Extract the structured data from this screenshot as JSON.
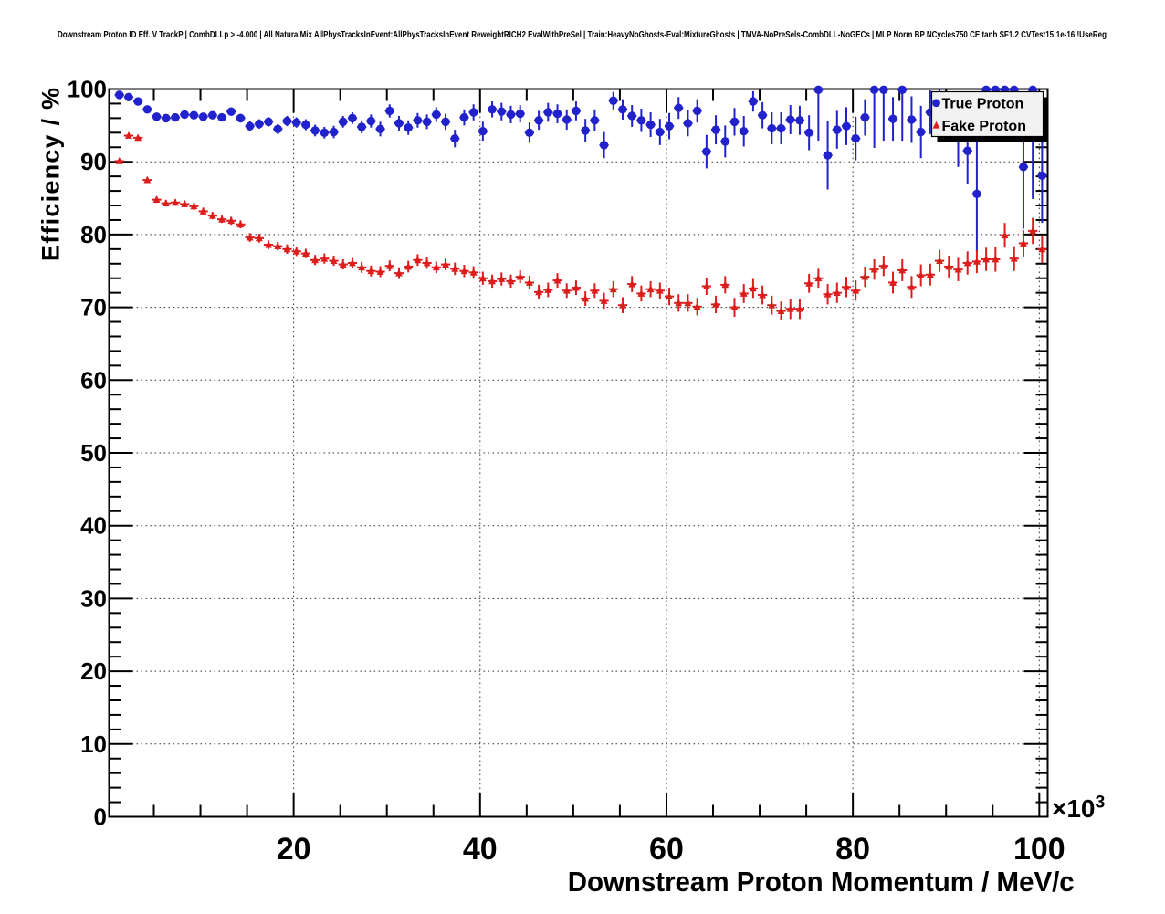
{
  "title": "Downstream Proton ID Eff. V TrackP | CombDLLp > -4.000 | All NaturalMix AllPhysTracksInEvent:AllPhysTracksInEvent ReweightRICH2 EvalWithPreSel | Train:HeavyNoGhosts-Eval:MixtureGhosts | TMVA-NoPreSels-CombDLL-NoGECs | MLP Norm BP NCycles750 CE tanh SF1.2 CVTest15:1e-16 !UseReg",
  "chart_data": {
    "type": "scatter",
    "title": "Downstream Proton ID Eff. V TrackP | CombDLLp > -4.000 | All NaturalMix AllPhysTracksInEvent:AllPhysTracksInEvent ReweightRICH2 EvalWithPreSel | Train:HeavyNoGhosts-Eval:MixtureGhosts | TMVA-NoPreSels-CombDLL-NoGECs | MLP Norm BP NCycles750 CE tanh SF1.2 CVTest15:1e-16 !UseReg",
    "xlabel": "Downstream Proton Momentum / MeV/c",
    "ylabel": "Efficiency / %",
    "x_multiplier_base": "×10",
    "x_multiplier_exp": "3",
    "xlim": [
      0.2,
      100.9
    ],
    "ylim": [
      0,
      100
    ],
    "x_major_ticks": [
      20,
      40,
      60,
      80,
      100
    ],
    "x_minor_step": 5,
    "y_major_ticks": [
      0,
      10,
      20,
      30,
      40,
      50,
      60,
      70,
      80,
      90,
      100
    ],
    "y_minor_step": 2,
    "grid": "dotted-major",
    "legend": {
      "position": "top-right",
      "entries": [
        {
          "label": "True Proton",
          "marker": "circle",
          "color": "#2222cc"
        },
        {
          "label": "Fake Proton",
          "marker": "triangle",
          "color": "#dd1c1c"
        }
      ]
    },
    "series": [
      {
        "name": "True Proton",
        "marker": "circle",
        "color": "#2222cc",
        "x_halfwidth": 0.5,
        "points": [
          [
            1.3,
            99.2,
            0.25
          ],
          [
            2.3,
            98.9,
            0.3
          ],
          [
            3.3,
            98.3,
            0.35
          ],
          [
            4.3,
            97.2,
            0.4
          ],
          [
            5.3,
            96.2,
            0.45
          ],
          [
            6.3,
            96.0,
            0.45
          ],
          [
            7.3,
            96.1,
            0.45
          ],
          [
            8.3,
            96.5,
            0.45
          ],
          [
            9.3,
            96.4,
            0.5
          ],
          [
            10.3,
            96.2,
            0.5
          ],
          [
            11.3,
            96.4,
            0.5
          ],
          [
            12.3,
            96.1,
            0.5
          ],
          [
            13.3,
            96.9,
            0.55
          ],
          [
            14.3,
            96.0,
            0.6
          ],
          [
            15.3,
            94.9,
            0.65
          ],
          [
            16.3,
            95.2,
            0.65
          ],
          [
            17.3,
            95.5,
            0.65
          ],
          [
            18.3,
            94.5,
            0.7
          ],
          [
            19.3,
            95.6,
            0.7
          ],
          [
            20.3,
            95.4,
            0.7
          ],
          [
            21.3,
            95.1,
            0.75
          ],
          [
            22.3,
            94.3,
            0.8
          ],
          [
            23.3,
            94.0,
            0.8
          ],
          [
            24.3,
            94.1,
            0.85
          ],
          [
            25.3,
            95.5,
            0.8
          ],
          [
            26.3,
            96.0,
            0.8
          ],
          [
            27.3,
            94.8,
            0.9
          ],
          [
            28.3,
            95.6,
            0.9
          ],
          [
            29.3,
            94.5,
            1.0
          ],
          [
            30.3,
            97.0,
            0.9
          ],
          [
            31.3,
            95.3,
            1.0
          ],
          [
            32.3,
            94.7,
            1.0
          ],
          [
            33.3,
            95.7,
            1.0
          ],
          [
            34.3,
            95.5,
            1.0
          ],
          [
            35.3,
            96.5,
            1.0
          ],
          [
            36.3,
            95.5,
            1.1
          ],
          [
            37.3,
            93.2,
            1.2
          ],
          [
            38.3,
            96.1,
            1.1
          ],
          [
            39.3,
            96.8,
            1.1
          ],
          [
            40.3,
            94.2,
            1.3
          ],
          [
            41.3,
            97.2,
            1.1
          ],
          [
            42.3,
            96.9,
            1.2
          ],
          [
            43.3,
            96.5,
            1.2
          ],
          [
            44.3,
            96.6,
            1.2
          ],
          [
            45.3,
            94.0,
            1.4
          ],
          [
            46.3,
            95.7,
            1.3
          ],
          [
            47.3,
            96.8,
            1.3
          ],
          [
            48.3,
            96.6,
            1.3
          ],
          [
            49.3,
            95.8,
            1.4
          ],
          [
            50.3,
            97.0,
            1.3
          ],
          [
            51.3,
            94.3,
            1.6
          ],
          [
            52.3,
            95.7,
            1.5
          ],
          [
            53.3,
            92.3,
            1.8
          ],
          [
            54.3,
            98.4,
            1.2
          ],
          [
            55.3,
            97.2,
            1.4
          ],
          [
            56.3,
            96.3,
            1.5
          ],
          [
            57.3,
            95.7,
            1.6
          ],
          [
            58.3,
            95.1,
            1.7
          ],
          [
            59.3,
            94.1,
            1.8
          ],
          [
            60.3,
            94.9,
            1.8
          ],
          [
            61.3,
            97.4,
            1.5
          ],
          [
            62.3,
            95.3,
            1.8
          ],
          [
            63.3,
            97.0,
            1.6
          ],
          [
            64.3,
            91.4,
            2.3
          ],
          [
            65.3,
            94.4,
            2.0
          ],
          [
            66.3,
            92.8,
            2.2
          ],
          [
            67.3,
            95.5,
            1.9
          ],
          [
            68.3,
            94.2,
            2.1
          ],
          [
            69.3,
            98.3,
            1.4
          ],
          [
            70.3,
            96.4,
            1.8
          ],
          [
            71.3,
            94.6,
            2.2
          ],
          [
            72.3,
            94.6,
            2.2
          ],
          [
            73.3,
            95.8,
            2.0
          ],
          [
            74.3,
            95.7,
            2.0
          ],
          [
            75.3,
            94.0,
            2.4
          ],
          [
            76.3,
            99.9,
            7.0
          ],
          [
            77.3,
            90.9,
            4.7
          ],
          [
            78.3,
            94.4,
            2.6
          ],
          [
            79.3,
            94.9,
            2.6
          ],
          [
            80.3,
            93.2,
            3.0
          ],
          [
            81.3,
            96.1,
            2.5
          ],
          [
            82.3,
            99.9,
            8.0
          ],
          [
            83.3,
            99.9,
            7.0
          ],
          [
            84.3,
            95.9,
            3.0
          ],
          [
            85.3,
            99.9,
            7.0
          ],
          [
            86.3,
            95.8,
            3.2
          ],
          [
            87.3,
            94.1,
            3.6
          ],
          [
            88.3,
            96.8,
            3.0
          ],
          [
            89.3,
            97.2,
            2.8
          ],
          [
            90.3,
            96.2,
            3.2
          ],
          [
            91.3,
            93.3,
            4.0
          ],
          [
            92.3,
            91.5,
            4.5
          ],
          [
            93.3,
            85.6,
            8.0
          ],
          [
            94.3,
            99.9,
            5.0
          ],
          [
            95.3,
            99.9,
            5.0
          ],
          [
            96.3,
            99.9,
            5.0
          ],
          [
            97.3,
            99.9,
            5.0
          ],
          [
            98.3,
            89.3,
            8.5
          ],
          [
            99.3,
            99.9,
            15.0
          ],
          [
            100.3,
            88.1,
            6.5
          ]
        ]
      },
      {
        "name": "Fake Proton",
        "marker": "triangle",
        "color": "#dd1c1c",
        "x_halfwidth": 0.5,
        "points": [
          [
            1.3,
            90.1,
            0.35
          ],
          [
            2.3,
            93.6,
            0.3
          ],
          [
            3.3,
            93.3,
            0.3
          ],
          [
            4.3,
            87.5,
            0.4
          ],
          [
            5.3,
            84.8,
            0.45
          ],
          [
            6.3,
            84.3,
            0.45
          ],
          [
            7.3,
            84.4,
            0.45
          ],
          [
            8.3,
            84.2,
            0.45
          ],
          [
            9.3,
            83.9,
            0.5
          ],
          [
            10.3,
            83.2,
            0.5
          ],
          [
            11.3,
            82.6,
            0.5
          ],
          [
            12.3,
            82.1,
            0.5
          ],
          [
            13.3,
            81.9,
            0.55
          ],
          [
            14.3,
            81.4,
            0.55
          ],
          [
            15.3,
            79.6,
            0.6
          ],
          [
            16.3,
            79.5,
            0.6
          ],
          [
            17.3,
            78.6,
            0.6
          ],
          [
            18.3,
            78.4,
            0.6
          ],
          [
            19.3,
            78.0,
            0.65
          ],
          [
            20.3,
            77.7,
            0.65
          ],
          [
            21.3,
            77.4,
            0.65
          ],
          [
            22.3,
            76.5,
            0.7
          ],
          [
            23.3,
            76.7,
            0.7
          ],
          [
            24.3,
            76.4,
            0.7
          ],
          [
            25.3,
            75.9,
            0.7
          ],
          [
            26.3,
            76.1,
            0.7
          ],
          [
            27.3,
            75.5,
            0.75
          ],
          [
            28.3,
            75.0,
            0.75
          ],
          [
            29.3,
            74.9,
            0.75
          ],
          [
            30.3,
            75.7,
            0.75
          ],
          [
            31.3,
            74.7,
            0.8
          ],
          [
            32.3,
            75.6,
            0.8
          ],
          [
            33.3,
            76.5,
            0.8
          ],
          [
            34.3,
            76.1,
            0.8
          ],
          [
            35.3,
            75.5,
            0.8
          ],
          [
            36.3,
            75.9,
            0.8
          ],
          [
            37.3,
            75.3,
            0.85
          ],
          [
            38.3,
            75.0,
            0.85
          ],
          [
            39.3,
            74.8,
            0.85
          ],
          [
            40.3,
            74.0,
            0.9
          ],
          [
            41.3,
            73.6,
            0.9
          ],
          [
            42.3,
            73.9,
            0.9
          ],
          [
            43.3,
            73.6,
            0.9
          ],
          [
            44.3,
            74.2,
            0.9
          ],
          [
            45.3,
            73.4,
            0.95
          ],
          [
            46.3,
            72.1,
            1.0
          ],
          [
            47.3,
            72.4,
            1.0
          ],
          [
            48.3,
            73.7,
            1.0
          ],
          [
            49.3,
            72.3,
            1.0
          ],
          [
            50.3,
            72.7,
            1.0
          ],
          [
            51.3,
            71.2,
            1.0
          ],
          [
            52.3,
            72.3,
            1.0
          ],
          [
            53.3,
            70.9,
            1.1
          ],
          [
            54.3,
            72.5,
            1.1
          ],
          [
            55.3,
            70.3,
            1.1
          ],
          [
            56.3,
            73.2,
            1.1
          ],
          [
            57.3,
            71.9,
            1.1
          ],
          [
            58.3,
            72.5,
            1.1
          ],
          [
            59.3,
            72.3,
            1.1
          ],
          [
            60.3,
            71.5,
            1.2
          ],
          [
            61.3,
            70.6,
            1.2
          ],
          [
            62.3,
            70.6,
            1.2
          ],
          [
            63.3,
            70.1,
            1.2
          ],
          [
            64.3,
            72.9,
            1.2
          ],
          [
            65.3,
            70.4,
            1.2
          ],
          [
            66.3,
            73.1,
            1.2
          ],
          [
            67.3,
            70.0,
            1.3
          ],
          [
            68.3,
            71.9,
            1.3
          ],
          [
            69.3,
            72.6,
            1.3
          ],
          [
            70.3,
            71.7,
            1.3
          ],
          [
            71.3,
            70.3,
            1.3
          ],
          [
            72.3,
            69.5,
            1.3
          ],
          [
            73.3,
            69.8,
            1.4
          ],
          [
            74.3,
            69.8,
            1.4
          ],
          [
            75.3,
            73.3,
            1.3
          ],
          [
            76.3,
            74.0,
            1.3
          ],
          [
            77.3,
            71.8,
            1.4
          ],
          [
            78.3,
            72.0,
            1.4
          ],
          [
            79.3,
            72.8,
            1.4
          ],
          [
            80.3,
            72.3,
            1.4
          ],
          [
            81.3,
            74.2,
            1.4
          ],
          [
            82.3,
            75.2,
            1.4
          ],
          [
            83.3,
            75.7,
            1.4
          ],
          [
            84.3,
            73.4,
            1.5
          ],
          [
            85.3,
            75.1,
            1.5
          ],
          [
            86.3,
            72.8,
            1.5
          ],
          [
            87.3,
            74.4,
            1.5
          ],
          [
            88.3,
            74.5,
            1.5
          ],
          [
            89.3,
            76.4,
            1.5
          ],
          [
            90.3,
            75.6,
            1.5
          ],
          [
            91.3,
            75.2,
            1.6
          ],
          [
            92.3,
            76.1,
            1.6
          ],
          [
            93.3,
            76.3,
            1.6
          ],
          [
            94.3,
            76.6,
            1.6
          ],
          [
            95.3,
            76.6,
            1.7
          ],
          [
            96.3,
            79.9,
            1.7
          ],
          [
            97.3,
            76.7,
            1.7
          ],
          [
            98.3,
            78.8,
            1.8
          ],
          [
            99.3,
            80.5,
            1.8
          ],
          [
            100.3,
            78.0,
            1.9
          ]
        ]
      }
    ]
  }
}
